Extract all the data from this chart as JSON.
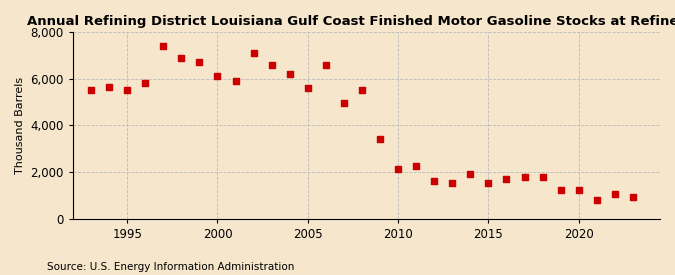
{
  "title": "Annual Refining District Louisiana Gulf Coast Finished Motor Gasoline Stocks at Refineries",
  "ylabel": "Thousand Barrels",
  "source": "Source: U.S. Energy Information Administration",
  "background_color": "#f5e6cc",
  "marker_color": "#cc0000",
  "years": [
    1993,
    1994,
    1995,
    1996,
    1997,
    1998,
    1999,
    2000,
    2001,
    2002,
    2003,
    2004,
    2005,
    2006,
    2007,
    2008,
    2009,
    2010,
    2011,
    2012,
    2013,
    2014,
    2015,
    2016,
    2017,
    2018,
    2019,
    2020,
    2021,
    2022,
    2023
  ],
  "values": [
    5500,
    5650,
    5500,
    5800,
    7400,
    6900,
    6700,
    6100,
    5900,
    7100,
    6600,
    6200,
    5600,
    6600,
    4950,
    5500,
    3400,
    2150,
    2250,
    1600,
    1550,
    1900,
    1550,
    1700,
    1800,
    1800,
    1250,
    1250,
    800,
    1050,
    950
  ],
  "ylim": [
    0,
    8000
  ],
  "xlim": [
    1992,
    2024.5
  ],
  "yticks": [
    0,
    2000,
    4000,
    6000,
    8000
  ],
  "xticks": [
    1995,
    2000,
    2005,
    2010,
    2015,
    2020
  ],
  "title_fontsize": 9.5,
  "ylabel_fontsize": 8,
  "source_fontsize": 7.5,
  "tick_fontsize": 8.5
}
